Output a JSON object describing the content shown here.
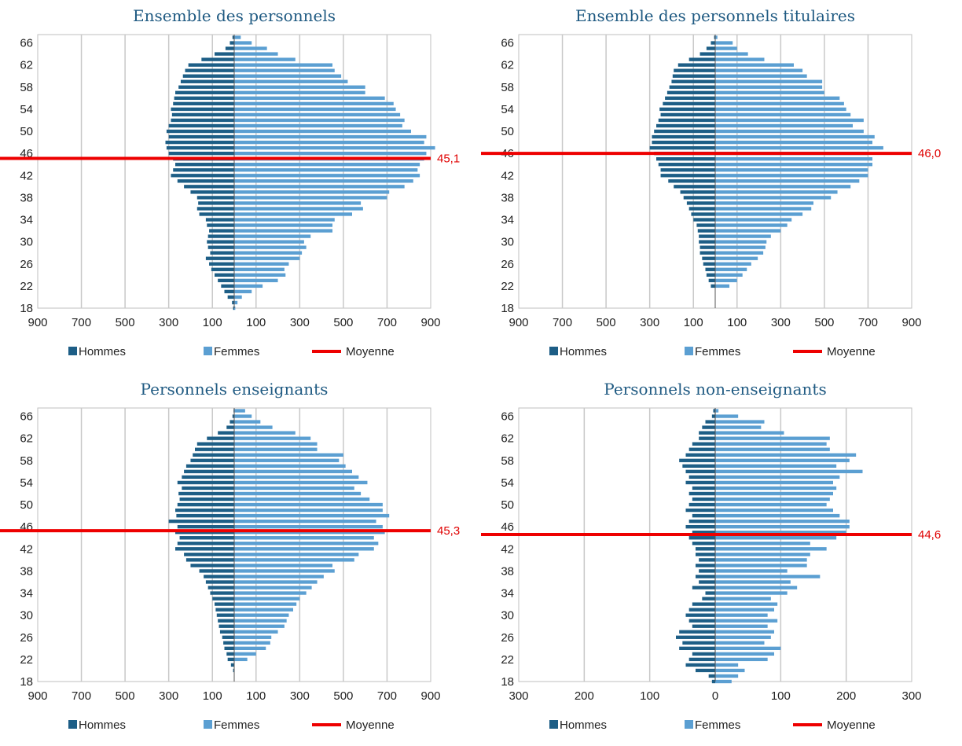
{
  "colors": {
    "hommes": "#1d5e86",
    "femmes": "#5b9fd2",
    "moyenne": "#ee0000",
    "title": "#1f5a82",
    "grid": "#c8c8c8"
  },
  "legend": {
    "hommes": "Hommes",
    "femmes": "Femmes",
    "moyenne": "Moyenne"
  },
  "chart_data": [
    {
      "type": "bar",
      "title": "Ensemble des personnels",
      "orientation": "horizontal-pyramid",
      "ages": [
        18,
        19,
        20,
        21,
        22,
        23,
        24,
        25,
        26,
        27,
        28,
        29,
        30,
        31,
        32,
        33,
        34,
        35,
        36,
        37,
        38,
        39,
        40,
        41,
        42,
        43,
        44,
        45,
        46,
        47,
        48,
        49,
        50,
        51,
        52,
        53,
        54,
        55,
        56,
        57,
        58,
        59,
        60,
        61,
        62,
        63,
        64,
        65,
        66,
        67
      ],
      "y_ticks": [
        "18",
        "22",
        "26",
        "30",
        "34",
        "38",
        "42",
        "46",
        "50",
        "54",
        "58",
        "62",
        "66"
      ],
      "x_ticks": [
        "900",
        "700",
        "500",
        "300",
        "100",
        "100",
        "300",
        "500",
        "700",
        "900"
      ],
      "xlim": [
        -900,
        900
      ],
      "series": [
        {
          "name": "Hommes",
          "values": [
            5,
            10,
            30,
            45,
            60,
            75,
            90,
            105,
            115,
            130,
            110,
            120,
            125,
            120,
            115,
            125,
            130,
            160,
            170,
            165,
            170,
            200,
            230,
            260,
            290,
            280,
            270,
            280,
            300,
            310,
            315,
            300,
            310,
            300,
            290,
            285,
            290,
            280,
            275,
            270,
            255,
            245,
            235,
            225,
            210,
            150,
            90,
            40,
            20,
            8
          ]
        },
        {
          "name": "Femmes",
          "values": [
            5,
            15,
            35,
            80,
            130,
            200,
            235,
            230,
            250,
            300,
            310,
            330,
            320,
            350,
            450,
            450,
            460,
            540,
            590,
            580,
            700,
            710,
            780,
            820,
            850,
            840,
            850,
            870,
            880,
            920,
            870,
            880,
            810,
            770,
            780,
            760,
            740,
            730,
            690,
            600,
            600,
            520,
            490,
            460,
            450,
            280,
            200,
            150,
            80,
            30
          ]
        }
      ],
      "mean": {
        "value": 45.1,
        "label": "45,1"
      }
    },
    {
      "type": "bar",
      "title": "Ensemble des personnels titulaires",
      "orientation": "horizontal-pyramid",
      "ages": [
        18,
        19,
        20,
        21,
        22,
        23,
        24,
        25,
        26,
        27,
        28,
        29,
        30,
        31,
        32,
        33,
        34,
        35,
        36,
        37,
        38,
        39,
        40,
        41,
        42,
        43,
        44,
        45,
        46,
        47,
        48,
        49,
        50,
        51,
        52,
        53,
        54,
        55,
        56,
        57,
        58,
        59,
        60,
        61,
        62,
        63,
        64,
        65,
        66,
        67
      ],
      "y_ticks": [
        "18",
        "22",
        "26",
        "30",
        "34",
        "38",
        "42",
        "46",
        "50",
        "54",
        "58",
        "62",
        "66"
      ],
      "x_ticks": [
        "900",
        "700",
        "500",
        "300",
        "100",
        "100",
        "300",
        "500",
        "700",
        "900"
      ],
      "xlim": [
        -900,
        900
      ],
      "series": [
        {
          "name": "Hommes",
          "values": [
            0,
            0,
            0,
            0,
            20,
            30,
            40,
            45,
            55,
            60,
            70,
            70,
            75,
            75,
            80,
            85,
            100,
            110,
            120,
            130,
            145,
            160,
            190,
            215,
            250,
            250,
            260,
            270,
            280,
            300,
            290,
            290,
            280,
            270,
            260,
            250,
            255,
            240,
            230,
            220,
            210,
            200,
            195,
            190,
            170,
            120,
            70,
            40,
            20,
            5
          ]
        },
        {
          "name": "Femmes",
          "values": [
            0,
            0,
            0,
            0,
            65,
            100,
            125,
            145,
            165,
            195,
            220,
            230,
            235,
            255,
            300,
            330,
            350,
            400,
            440,
            450,
            530,
            560,
            620,
            660,
            700,
            700,
            720,
            720,
            700,
            770,
            720,
            730,
            680,
            630,
            680,
            620,
            600,
            590,
            570,
            500,
            490,
            490,
            420,
            400,
            360,
            225,
            150,
            100,
            80,
            10
          ]
        }
      ],
      "mean": {
        "value": 46.0,
        "label": "46,0"
      }
    },
    {
      "type": "bar",
      "title": "Personnels enseignants",
      "orientation": "horizontal-pyramid",
      "ages": [
        18,
        19,
        20,
        21,
        22,
        23,
        24,
        25,
        26,
        27,
        28,
        29,
        30,
        31,
        32,
        33,
        34,
        35,
        36,
        37,
        38,
        39,
        40,
        41,
        42,
        43,
        44,
        45,
        46,
        47,
        48,
        49,
        50,
        51,
        52,
        53,
        54,
        55,
        56,
        57,
        58,
        59,
        60,
        61,
        62,
        63,
        64,
        65,
        66,
        67
      ],
      "y_ticks": [
        "18",
        "22",
        "26",
        "30",
        "34",
        "38",
        "42",
        "46",
        "50",
        "54",
        "58",
        "62",
        "66"
      ],
      "x_ticks": [
        "900",
        "700",
        "500",
        "300",
        "100",
        "100",
        "300",
        "500",
        "700",
        "900"
      ],
      "xlim": [
        -900,
        900
      ],
      "series": [
        {
          "name": "Hommes",
          "values": [
            0,
            0,
            5,
            15,
            30,
            35,
            45,
            50,
            55,
            65,
            70,
            75,
            80,
            85,
            90,
            100,
            110,
            120,
            130,
            140,
            160,
            200,
            220,
            230,
            270,
            260,
            250,
            270,
            260,
            300,
            265,
            270,
            260,
            250,
            255,
            240,
            260,
            240,
            230,
            220,
            200,
            190,
            180,
            170,
            125,
            75,
            35,
            20,
            8,
            3
          ]
        },
        {
          "name": "Femmes",
          "values": [
            0,
            0,
            0,
            0,
            60,
            100,
            145,
            165,
            170,
            200,
            230,
            240,
            250,
            270,
            285,
            300,
            330,
            355,
            380,
            410,
            460,
            450,
            550,
            570,
            640,
            660,
            640,
            690,
            680,
            650,
            710,
            680,
            680,
            620,
            580,
            550,
            610,
            570,
            540,
            510,
            480,
            500,
            380,
            380,
            350,
            280,
            175,
            120,
            80,
            50
          ]
        }
      ],
      "mean": {
        "value": 45.3,
        "label": "45,3"
      }
    },
    {
      "type": "bar",
      "title": "Personnels non-enseignants",
      "orientation": "horizontal-pyramid",
      "ages": [
        18,
        19,
        20,
        21,
        22,
        23,
        24,
        25,
        26,
        27,
        28,
        29,
        30,
        31,
        32,
        33,
        34,
        35,
        36,
        37,
        38,
        39,
        40,
        41,
        42,
        43,
        44,
        45,
        46,
        47,
        48,
        49,
        50,
        51,
        52,
        53,
        54,
        55,
        56,
        57,
        58,
        59,
        60,
        61,
        62,
        63,
        64,
        65,
        66,
        67
      ],
      "y_ticks": [
        "18",
        "22",
        "26",
        "30",
        "34",
        "38",
        "42",
        "46",
        "50",
        "54",
        "58",
        "62",
        "66"
      ],
      "x_ticks": [
        "300",
        "200",
        "100",
        "0",
        "100",
        "200",
        "300"
      ],
      "xlim": [
        -300,
        300
      ],
      "series": [
        {
          "name": "Hommes",
          "values": [
            5,
            10,
            30,
            45,
            40,
            35,
            55,
            50,
            60,
            55,
            35,
            40,
            45,
            40,
            35,
            20,
            15,
            35,
            25,
            30,
            25,
            30,
            25,
            30,
            30,
            35,
            40,
            35,
            45,
            40,
            35,
            45,
            40,
            35,
            40,
            35,
            45,
            40,
            45,
            50,
            55,
            45,
            40,
            35,
            25,
            25,
            20,
            15,
            5,
            3
          ]
        },
        {
          "name": "Femmes",
          "values": [
            25,
            35,
            45,
            35,
            80,
            90,
            100,
            75,
            85,
            90,
            80,
            95,
            80,
            90,
            95,
            85,
            110,
            125,
            115,
            160,
            110,
            140,
            140,
            145,
            170,
            145,
            185,
            200,
            205,
            205,
            190,
            180,
            170,
            175,
            180,
            185,
            180,
            190,
            225,
            185,
            205,
            215,
            175,
            170,
            175,
            105,
            70,
            75,
            35,
            5
          ]
        }
      ],
      "mean": {
        "value": 44.6,
        "label": "44,6"
      }
    }
  ]
}
